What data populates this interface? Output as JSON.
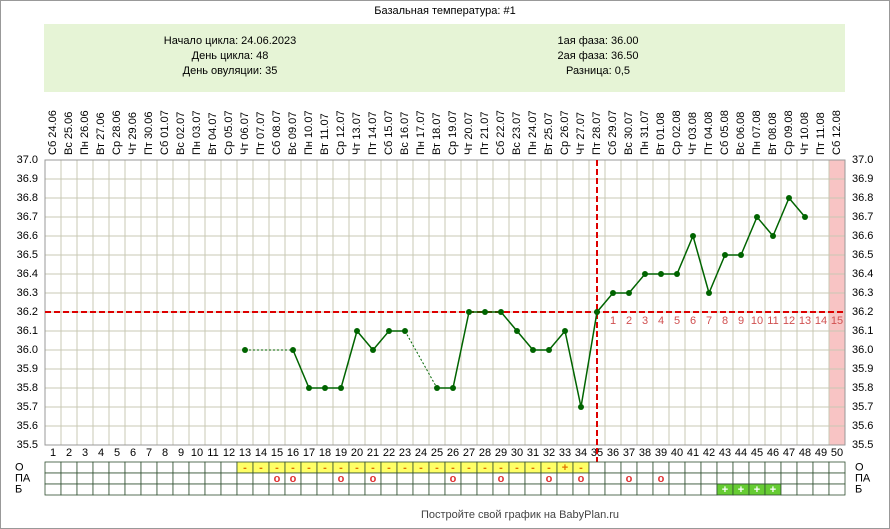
{
  "chart_data": {
    "type": "line",
    "title": "Базальная температура: #1",
    "info_left": [
      "Начало цикла: 24.06.2023",
      "День цикла: 48",
      "День овуляции: 35"
    ],
    "info_right": [
      "1ая фаза: 36.00",
      "2ая фаза: 36.50",
      "Разница: 0,5"
    ],
    "categories": [
      "Сб 24.06",
      "Вс 25.06",
      "Пн 26.06",
      "Вт 27.06",
      "Ср 28.06",
      "Чт 29.06",
      "Пт 30.06",
      "Сб 01.07",
      "Вс 02.07",
      "Пн 03.07",
      "Вт 04.07",
      "Ср 05.07",
      "Чт 06.07",
      "Пт 07.07",
      "Сб 08.07",
      "Вс 09.07",
      "Пн 10.07",
      "Вт 11.07",
      "Ср 12.07",
      "Чт 13.07",
      "Пт 14.07",
      "Сб 15.07",
      "Вс 16.07",
      "Пн 17.07",
      "Вт 18.07",
      "Ср 19.07",
      "Чт 20.07",
      "Пт 21.07",
      "Сб 22.07",
      "Вс 23.07",
      "Пн 24.07",
      "Вт 25.07",
      "Ср 26.07",
      "Чт 27.07",
      "Пт 28.07",
      "Сб 29.07",
      "Вс 30.07",
      "Пн 31.07",
      "Вт 01.08",
      "Ср 02.08",
      "Чт 03.08",
      "Пт 04.08",
      "Сб 05.08",
      "Вс 06.08",
      "Пн 07.08",
      "Вт 08.08",
      "Ср 09.08",
      "Чт 10.08",
      "Пт 11.08",
      "Сб 12.08"
    ],
    "days": [
      1,
      2,
      3,
      4,
      5,
      6,
      7,
      8,
      9,
      10,
      11,
      12,
      13,
      14,
      15,
      16,
      17,
      18,
      19,
      20,
      21,
      22,
      23,
      24,
      25,
      26,
      27,
      28,
      29,
      30,
      31,
      32,
      33,
      34,
      35,
      36,
      37,
      38,
      39,
      40,
      41,
      42,
      43,
      44,
      45,
      46,
      47,
      48,
      49,
      50
    ],
    "post_ovulation_labels": [
      1,
      2,
      3,
      4,
      5,
      6,
      7,
      8,
      9,
      10,
      11,
      12,
      13,
      14,
      15
    ],
    "series": [
      {
        "color": "#006400",
        "values": [
          null,
          null,
          null,
          null,
          null,
          null,
          null,
          null,
          null,
          null,
          null,
          null,
          36.0,
          null,
          null,
          36.0,
          35.8,
          35.8,
          35.8,
          36.1,
          36.0,
          36.1,
          36.1,
          null,
          35.8,
          35.8,
          36.2,
          36.2,
          36.2,
          36.1,
          36.0,
          36.0,
          36.1,
          35.7,
          36.2,
          36.3,
          36.3,
          36.4,
          36.4,
          36.4,
          36.6,
          36.3,
          36.5,
          36.5,
          36.7,
          36.6,
          36.8,
          36.7,
          null,
          null
        ]
      }
    ],
    "ylim": [
      35.5,
      37.0
    ],
    "yticks": [
      35.5,
      35.6,
      35.7,
      35.8,
      35.9,
      {
        "value": 36.0,
        "label": "36.0"
      },
      36.1,
      36.2,
      36.3,
      36.4,
      36.5,
      36.6,
      36.7,
      36.8,
      36.9,
      {
        "value": 37.0,
        "label": "37.0"
      }
    ],
    "grid": true,
    "cover_line": 36.2,
    "ovulation_day": 35,
    "marker_line_color": "#dd0000",
    "highlight_day": 50,
    "highlight_color": "#f8c4c4",
    "marker_rows": [
      {
        "label": "О",
        "fill": "#ffff66",
        "text_color": "#e07000",
        "cells": [
          null,
          null,
          null,
          null,
          null,
          null,
          null,
          null,
          null,
          null,
          null,
          null,
          "-",
          "-",
          "-",
          "-",
          "-",
          "-",
          "-",
          "-",
          "-",
          "-",
          "-",
          "-",
          "-",
          "-",
          "-",
          "-",
          "-",
          "-",
          "-",
          "-",
          "+",
          "-",
          null,
          null,
          null,
          null,
          null,
          null,
          null,
          null,
          null,
          null,
          null,
          null,
          null,
          null,
          null,
          null
        ]
      },
      {
        "label": "ПА",
        "text_color": "#e03030",
        "cells": [
          null,
          null,
          null,
          null,
          null,
          null,
          null,
          null,
          null,
          null,
          null,
          null,
          null,
          null,
          "o",
          "o",
          null,
          null,
          "o",
          null,
          "o",
          null,
          null,
          null,
          null,
          "o",
          null,
          null,
          "o",
          null,
          null,
          "o",
          null,
          "o",
          null,
          null,
          "o",
          null,
          "o",
          null,
          null,
          null,
          null,
          null,
          null,
          null,
          null,
          null,
          null,
          null
        ]
      },
      {
        "label": "Б",
        "fill": "#66cc33",
        "text_color": "#ffffff",
        "cells": [
          null,
          null,
          null,
          null,
          null,
          null,
          null,
          null,
          null,
          null,
          null,
          null,
          null,
          null,
          null,
          null,
          null,
          null,
          null,
          null,
          null,
          null,
          null,
          null,
          null,
          null,
          null,
          null,
          null,
          null,
          null,
          null,
          null,
          null,
          null,
          null,
          null,
          null,
          null,
          null,
          null,
          null,
          "+",
          "+",
          "+",
          "+",
          null,
          null,
          null,
          null
        ]
      }
    ],
    "footer": "Постройте свой график на BabyPlan.ru"
  }
}
